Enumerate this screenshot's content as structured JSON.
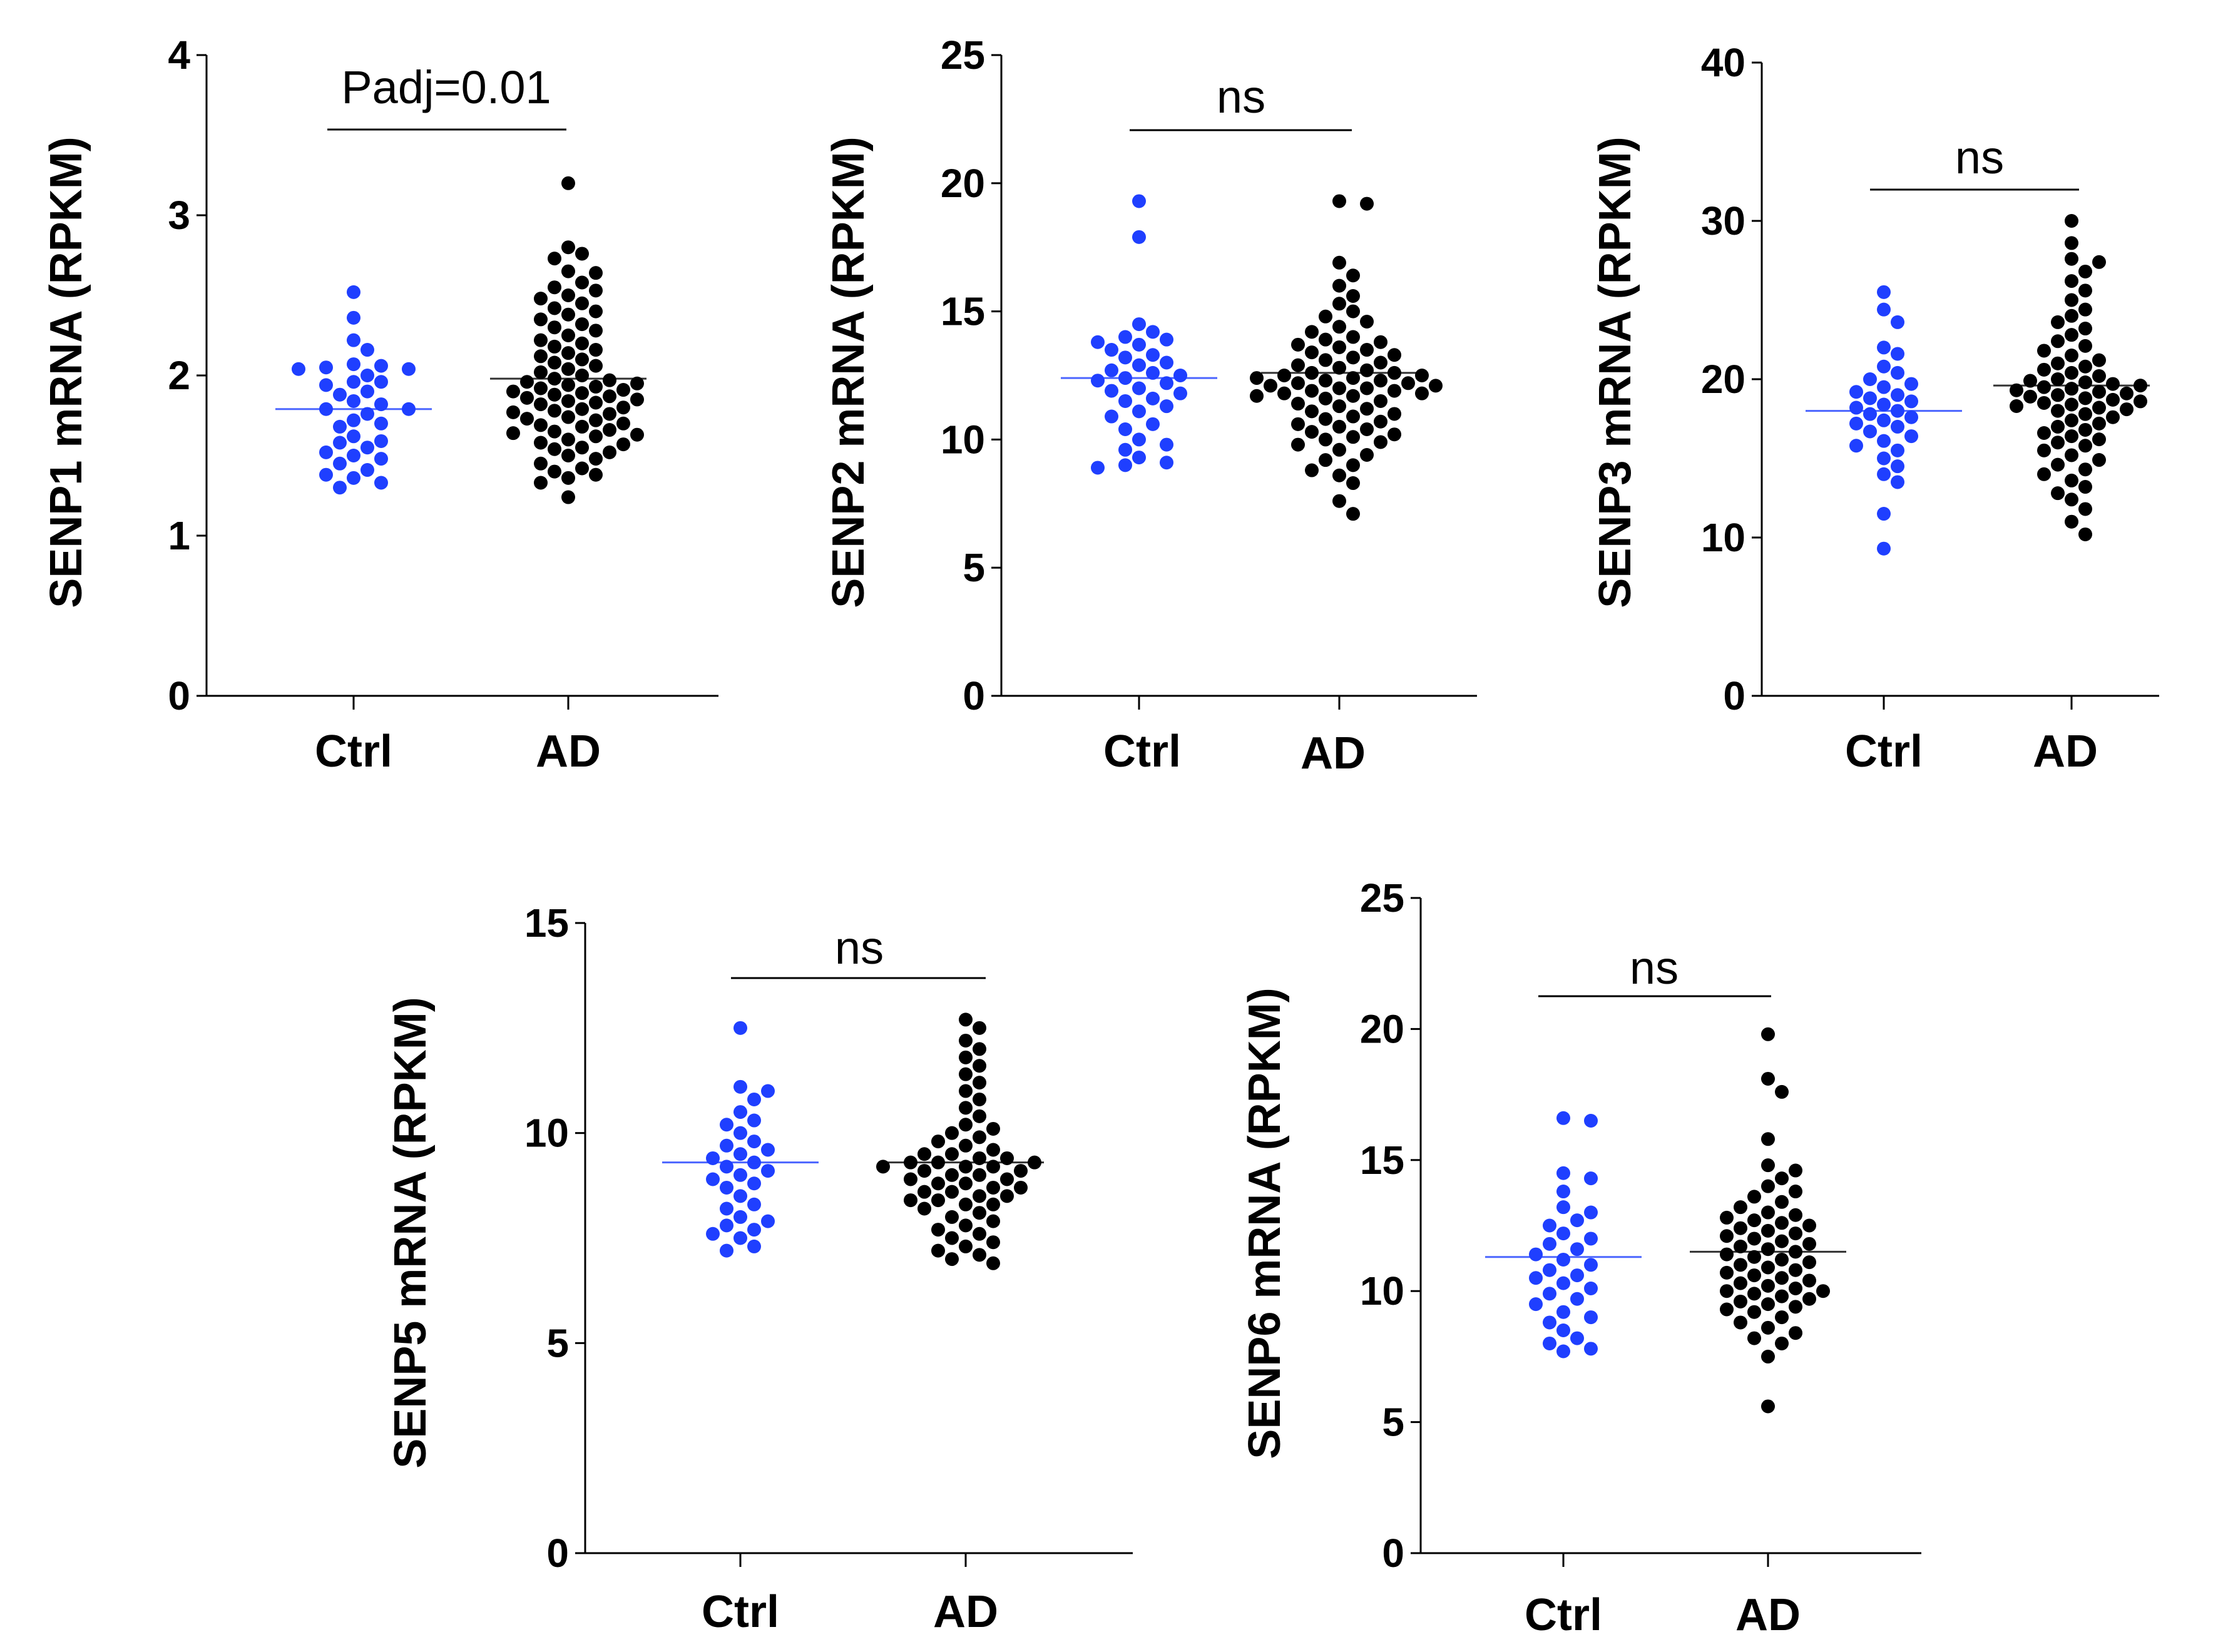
{
  "chart_data": [
    {
      "type": "scatter",
      "ylabel": "SENP1 mRNA (RPKM)",
      "ylim": [
        0,
        4
      ],
      "yticks": [
        0,
        1,
        2,
        3,
        4
      ],
      "categories": [
        "Ctrl",
        "AD"
      ],
      "significance": "Padj=0.01",
      "colors": {
        "Ctrl": "#1f3fff",
        "AD": "#000000"
      },
      "series": [
        {
          "name": "Ctrl",
          "mean": 1.79,
          "values": [
            2.52,
            2.36,
            2.22,
            2.16,
            2.07,
            2.06,
            2.05,
            2.04,
            2.04,
            2.0,
            1.96,
            1.96,
            1.94,
            1.9,
            1.88,
            1.84,
            1.82,
            1.79,
            1.79,
            1.76,
            1.72,
            1.7,
            1.68,
            1.62,
            1.59,
            1.58,
            1.55,
            1.52,
            1.5,
            1.48,
            1.45,
            1.41,
            1.38,
            1.36,
            1.33,
            1.3
          ]
        },
        {
          "name": "AD",
          "mean": 1.98,
          "values": [
            3.2,
            2.8,
            2.76,
            2.73,
            2.65,
            2.64,
            2.58,
            2.55,
            2.53,
            2.5,
            2.48,
            2.45,
            2.42,
            2.4,
            2.38,
            2.35,
            2.32,
            2.3,
            2.28,
            2.25,
            2.22,
            2.2,
            2.18,
            2.16,
            2.14,
            2.12,
            2.1,
            2.08,
            2.06,
            2.04,
            2.02,
            2.0,
            1.98,
            1.97,
            1.96,
            1.95,
            1.94,
            1.93,
            1.92,
            1.91,
            1.9,
            1.89,
            1.88,
            1.87,
            1.86,
            1.85,
            1.84,
            1.83,
            1.82,
            1.8,
            1.79,
            1.78,
            1.77,
            1.76,
            1.74,
            1.73,
            1.72,
            1.7,
            1.69,
            1.68,
            1.66,
            1.65,
            1.64,
            1.63,
            1.62,
            1.6,
            1.58,
            1.57,
            1.55,
            1.54,
            1.52,
            1.5,
            1.48,
            1.45,
            1.42,
            1.4,
            1.38,
            1.36,
            1.33,
            1.24
          ]
        }
      ]
    },
    {
      "type": "scatter",
      "ylabel": "SENP2 mRNA (RPKM)",
      "ylim": [
        0,
        25
      ],
      "yticks": [
        0,
        5,
        10,
        15,
        20,
        25
      ],
      "categories": [
        "Ctrl",
        "AD"
      ],
      "significance": "ns",
      "colors": {
        "Ctrl": "#1f3fff",
        "AD": "#000000"
      },
      "series": [
        {
          "name": "Ctrl",
          "mean": 12.4,
          "values": [
            19.3,
            17.9,
            14.5,
            14.2,
            14.0,
            13.9,
            13.8,
            13.7,
            13.5,
            13.3,
            13.2,
            13.0,
            12.9,
            12.7,
            12.6,
            12.5,
            12.4,
            12.3,
            12.2,
            12.0,
            11.9,
            11.8,
            11.6,
            11.5,
            11.3,
            11.1,
            10.9,
            10.6,
            10.4,
            10.0,
            9.8,
            9.6,
            9.3,
            9.1,
            9.0,
            8.9
          ]
        },
        {
          "name": "AD",
          "mean": 12.6,
          "values": [
            19.3,
            19.2,
            16.9,
            16.4,
            16.0,
            15.6,
            15.3,
            15.0,
            14.8,
            14.6,
            14.4,
            14.2,
            14.0,
            13.9,
            13.8,
            13.7,
            13.6,
            13.5,
            13.4,
            13.3,
            13.2,
            13.1,
            13.0,
            12.9,
            12.8,
            12.7,
            12.6,
            12.6,
            12.5,
            12.5,
            12.4,
            12.4,
            12.3,
            12.3,
            12.2,
            12.2,
            12.1,
            12.1,
            12.0,
            12.0,
            11.9,
            11.9,
            11.8,
            11.8,
            11.7,
            11.7,
            11.6,
            11.5,
            11.4,
            11.3,
            11.2,
            11.1,
            11.0,
            10.9,
            10.8,
            10.7,
            10.6,
            10.5,
            10.4,
            10.3,
            10.2,
            10.1,
            10.0,
            9.9,
            9.8,
            9.6,
            9.4,
            9.2,
            9.0,
            8.8,
            8.6,
            8.3,
            7.6,
            7.1
          ]
        }
      ]
    },
    {
      "type": "scatter",
      "ylabel": "SENP3 mRNA (RPKM)",
      "ylim": [
        0,
        40
      ],
      "yticks": [
        0,
        10,
        20,
        30,
        40
      ],
      "categories": [
        "Ctrl",
        "AD"
      ],
      "significance": "ns",
      "colors": {
        "Ctrl": "#1f3fff",
        "AD": "#000000"
      },
      "series": [
        {
          "name": "Ctrl",
          "mean": 18.0,
          "values": [
            25.5,
            24.4,
            23.6,
            22.0,
            21.6,
            20.8,
            20.4,
            20.0,
            19.7,
            19.5,
            19.2,
            19.0,
            18.8,
            18.6,
            18.4,
            18.2,
            18.0,
            17.8,
            17.6,
            17.4,
            17.2,
            17.0,
            16.7,
            16.4,
            16.1,
            15.8,
            15.5,
            15.0,
            14.5,
            14.0,
            13.5,
            11.5,
            9.3
          ]
        },
        {
          "name": "AD",
          "mean": 19.6,
          "values": [
            30.0,
            28.6,
            27.6,
            27.4,
            26.8,
            26.2,
            25.6,
            25.0,
            24.4,
            24.0,
            23.6,
            23.2,
            22.8,
            22.4,
            22.1,
            21.8,
            21.5,
            21.2,
            21.0,
            20.8,
            20.6,
            20.4,
            20.2,
            20.0,
            19.9,
            19.8,
            19.7,
            19.6,
            19.5,
            19.4,
            19.3,
            19.2,
            19.1,
            19.0,
            18.9,
            18.8,
            18.7,
            18.6,
            18.5,
            18.4,
            18.3,
            18.2,
            18.1,
            18.0,
            17.8,
            17.6,
            17.4,
            17.2,
            17.0,
            16.8,
            16.6,
            16.4,
            16.2,
            16.0,
            15.8,
            15.5,
            15.2,
            14.9,
            14.6,
            14.3,
            14.0,
            13.6,
            13.2,
            12.8,
            12.4,
            11.8,
            11.0,
            10.2
          ]
        }
      ]
    },
    {
      "type": "scatter",
      "ylabel": "SENP5 mRNA (RPKM)",
      "ylim": [
        0,
        15
      ],
      "yticks": [
        0,
        5,
        10,
        15
      ],
      "categories": [
        "Ctrl",
        "AD"
      ],
      "significance": "ns",
      "colors": {
        "Ctrl": "#1f3fff",
        "AD": "#000000"
      },
      "series": [
        {
          "name": "Ctrl",
          "mean": 9.3,
          "values": [
            12.5,
            11.1,
            11.0,
            10.8,
            10.5,
            10.3,
            10.2,
            10.0,
            9.8,
            9.7,
            9.6,
            9.5,
            9.4,
            9.3,
            9.2,
            9.1,
            9.0,
            8.9,
            8.8,
            8.7,
            8.5,
            8.3,
            8.2,
            8.0,
            7.9,
            7.8,
            7.7,
            7.6,
            7.5,
            7.3,
            7.2
          ]
        },
        {
          "name": "AD",
          "mean": 9.3,
          "values": [
            12.7,
            12.5,
            12.2,
            12.0,
            11.8,
            11.6,
            11.4,
            11.2,
            11.0,
            10.8,
            10.6,
            10.4,
            10.2,
            10.1,
            10.0,
            9.9,
            9.8,
            9.7,
            9.6,
            9.5,
            9.5,
            9.4,
            9.4,
            9.3,
            9.3,
            9.3,
            9.2,
            9.2,
            9.2,
            9.1,
            9.1,
            9.0,
            9.0,
            8.9,
            8.9,
            8.8,
            8.8,
            8.7,
            8.7,
            8.6,
            8.6,
            8.5,
            8.5,
            8.4,
            8.4,
            8.3,
            8.3,
            8.2,
            8.1,
            8.0,
            7.9,
            7.8,
            7.7,
            7.6,
            7.5,
            7.4,
            7.3,
            7.2,
            7.1,
            7.0,
            6.9
          ]
        }
      ]
    },
    {
      "type": "scatter",
      "ylabel": "SENP6 mRNA (RPKM)",
      "ylim": [
        0,
        25
      ],
      "yticks": [
        0,
        5,
        10,
        15,
        20,
        25
      ],
      "categories": [
        "Ctrl",
        "AD"
      ],
      "significance": "ns",
      "colors": {
        "Ctrl": "#1f3fff",
        "AD": "#000000"
      },
      "series": [
        {
          "name": "Ctrl",
          "mean": 11.3,
          "values": [
            16.6,
            16.5,
            14.5,
            14.3,
            13.8,
            13.2,
            13.0,
            12.7,
            12.5,
            12.2,
            12.0,
            11.8,
            11.6,
            11.4,
            11.2,
            11.0,
            10.8,
            10.6,
            10.5,
            10.3,
            10.1,
            9.9,
            9.7,
            9.5,
            9.2,
            9.0,
            8.8,
            8.5,
            8.2,
            8.0,
            7.8,
            7.7
          ]
        },
        {
          "name": "AD",
          "mean": 11.5,
          "values": [
            19.8,
            18.1,
            17.6,
            15.8,
            14.8,
            14.6,
            14.3,
            14.0,
            13.8,
            13.6,
            13.4,
            13.2,
            13.0,
            12.9,
            12.8,
            12.7,
            12.6,
            12.5,
            12.4,
            12.3,
            12.2,
            12.1,
            12.0,
            11.9,
            11.8,
            11.7,
            11.6,
            11.5,
            11.4,
            11.3,
            11.2,
            11.1,
            11.0,
            10.9,
            10.8,
            10.7,
            10.6,
            10.5,
            10.4,
            10.3,
            10.2,
            10.1,
            10.0,
            10.0,
            9.9,
            9.8,
            9.7,
            9.6,
            9.5,
            9.4,
            9.3,
            9.2,
            9.0,
            8.8,
            8.6,
            8.4,
            8.2,
            8.0,
            7.5,
            5.6
          ]
        }
      ]
    }
  ]
}
